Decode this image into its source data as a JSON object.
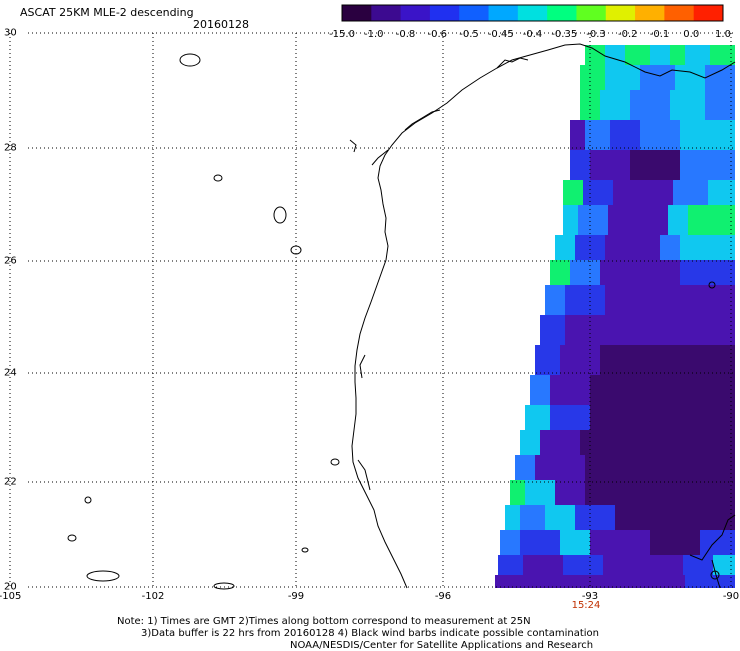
{
  "header": {
    "title": "ASCAT 25KM MLE-2 descending",
    "date": "20160128"
  },
  "colorbar": {
    "tick_labels": [
      "-15.0",
      "-1.0",
      "-0.8",
      "-0.6",
      "-0.5",
      "-0.45",
      "-0.4",
      "-0.35",
      "-0.3",
      "-0.2",
      "-0.1",
      "0.0",
      "1.0"
    ],
    "colors": [
      "#2a0040",
      "#3c0a90",
      "#3a14c8",
      "#2030f0",
      "#1060ff",
      "#00a8ff",
      "#00e0e0",
      "#00ff80",
      "#60ff20",
      "#e0f000",
      "#ffb000",
      "#ff6000",
      "#ff2000"
    ]
  },
  "axes": {
    "lat_labels": [
      "30",
      "28",
      "26",
      "24",
      "22",
      "20"
    ],
    "lon_labels": [
      "-105",
      "-102",
      "-99",
      "-96",
      "-93",
      "-90"
    ]
  },
  "pass_time": "15:24",
  "notes": [
    "Note: 1) Times are GMT 2)Times along bottom correspond to measurement at 25N",
    "3)Data buffer is 22 hrs from 20160128 4) Black wind barbs indicate possible contamination",
    "NOAA/NESDIS/Center for Satellite Applications and Research"
  ],
  "data_colors": {
    "deep": "#3a0a6e",
    "purple": "#4a14b0",
    "blue": "#2838e8",
    "light_blue": "#2878ff",
    "cyan": "#10c8f0",
    "green": "#10f070"
  }
}
